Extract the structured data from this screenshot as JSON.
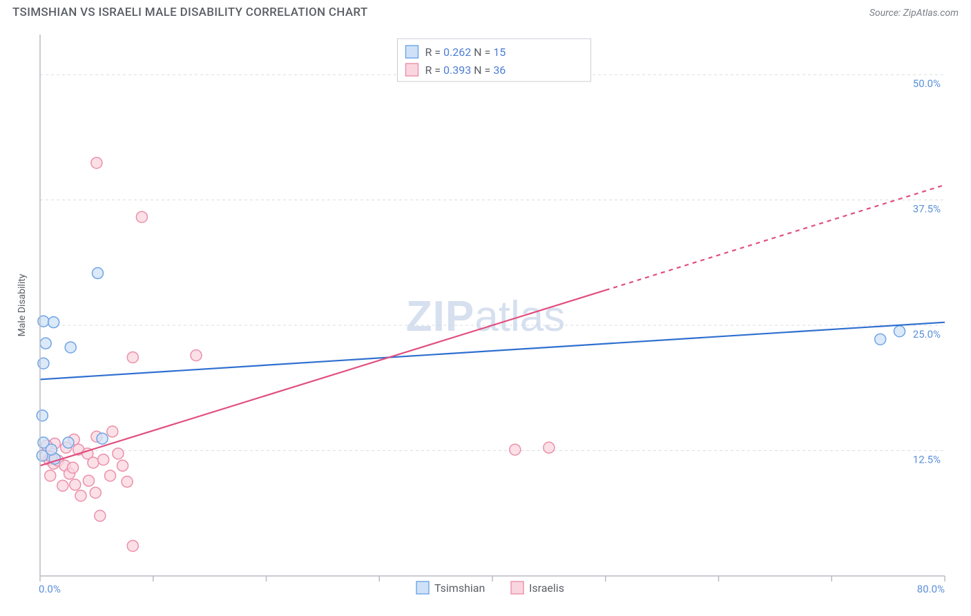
{
  "title": "TSIMSHIAN VS ISRAELI MALE DISABILITY CORRELATION CHART",
  "source_label": "Source: ZipAtlas.com",
  "ylabel": "Male Disability",
  "watermark": {
    "bold": "ZIP",
    "rest": "atlas"
  },
  "chart": {
    "type": "scatter",
    "xlim": [
      0,
      80
    ],
    "ylim": [
      0,
      54
    ],
    "x_axis_start_label": "0.0%",
    "x_axis_end_label": "80.0%",
    "y_ticks": [
      {
        "v": 12.5,
        "label": "12.5%"
      },
      {
        "v": 25.0,
        "label": "25.0%"
      },
      {
        "v": 37.5,
        "label": "37.5%"
      },
      {
        "v": 50.0,
        "label": "50.0%"
      }
    ],
    "x_ticks_minor": [
      0,
      10,
      20,
      30,
      40,
      50,
      60,
      70,
      80
    ],
    "background_color": "#ffffff",
    "grid_color": "#d9dce0",
    "grid_dash": "4 4",
    "axis_color": "#b7bcc3",
    "marker_radius": 8,
    "marker_stroke_width": 1.5,
    "line_width": 2.2,
    "series": {
      "tsimshian": {
        "label": "Tsimshian",
        "fill": "#cfe1f7",
        "stroke": "#6ea4e6",
        "line_color": "#2f6fd0",
        "R": "0.262",
        "N": "15",
        "trend": {
          "x1": 0,
          "y1": 19.6,
          "x2": 80,
          "y2": 25.3,
          "dash_from_x": null
        },
        "points": [
          [
            0.3,
            25.4
          ],
          [
            1.2,
            25.3
          ],
          [
            0.5,
            23.2
          ],
          [
            2.7,
            22.8
          ],
          [
            0.3,
            21.2
          ],
          [
            0.2,
            16.0
          ],
          [
            0.3,
            13.3
          ],
          [
            2.5,
            13.3
          ],
          [
            5.5,
            13.7
          ],
          [
            1.3,
            11.7
          ],
          [
            5.1,
            30.2
          ],
          [
            74.3,
            23.6
          ],
          [
            76.0,
            24.4
          ],
          [
            0.2,
            12.0
          ],
          [
            1.0,
            12.6
          ]
        ]
      },
      "israelis": {
        "label": "Israelis",
        "fill": "#f9d5df",
        "stroke": "#eb8fa9",
        "line_color": "#e14e7e",
        "R": "0.393",
        "N": "36",
        "trend": {
          "x1": 0,
          "y1": 11.0,
          "x2": 80,
          "y2": 39.0,
          "dash_from_x": 50
        },
        "points": [
          [
            5.0,
            41.2
          ],
          [
            9.0,
            35.8
          ],
          [
            8.2,
            21.8
          ],
          [
            13.8,
            22.0
          ],
          [
            0.5,
            12.0
          ],
          [
            0.8,
            11.6
          ],
          [
            1.2,
            11.2
          ],
          [
            1.6,
            11.5
          ],
          [
            2.2,
            11.0
          ],
          [
            2.6,
            10.2
          ],
          [
            2.9,
            10.8
          ],
          [
            0.9,
            10.0
          ],
          [
            3.4,
            12.6
          ],
          [
            3.0,
            13.6
          ],
          [
            4.2,
            12.2
          ],
          [
            4.7,
            11.3
          ],
          [
            5.0,
            13.9
          ],
          [
            5.6,
            11.6
          ],
          [
            6.4,
            14.4
          ],
          [
            6.9,
            12.2
          ],
          [
            7.3,
            11.0
          ],
          [
            7.7,
            9.4
          ],
          [
            4.3,
            9.5
          ],
          [
            2.0,
            9.0
          ],
          [
            3.6,
            8.0
          ],
          [
            4.9,
            8.3
          ],
          [
            5.3,
            6.0
          ],
          [
            8.2,
            3.0
          ],
          [
            3.1,
            9.1
          ],
          [
            2.3,
            12.8
          ],
          [
            1.3,
            13.2
          ],
          [
            0.6,
            13.0
          ],
          [
            1.0,
            11.9
          ],
          [
            42.0,
            12.6
          ],
          [
            45.0,
            12.8
          ],
          [
            6.2,
            10.0
          ]
        ]
      }
    }
  },
  "top_legend": [
    {
      "series": "tsimshian",
      "R_label": "R =",
      "N_label": "N ="
    },
    {
      "series": "israelis",
      "R_label": "R =",
      "N_label": "N ="
    }
  ],
  "bottom_legend": [
    "tsimshian",
    "israelis"
  ]
}
